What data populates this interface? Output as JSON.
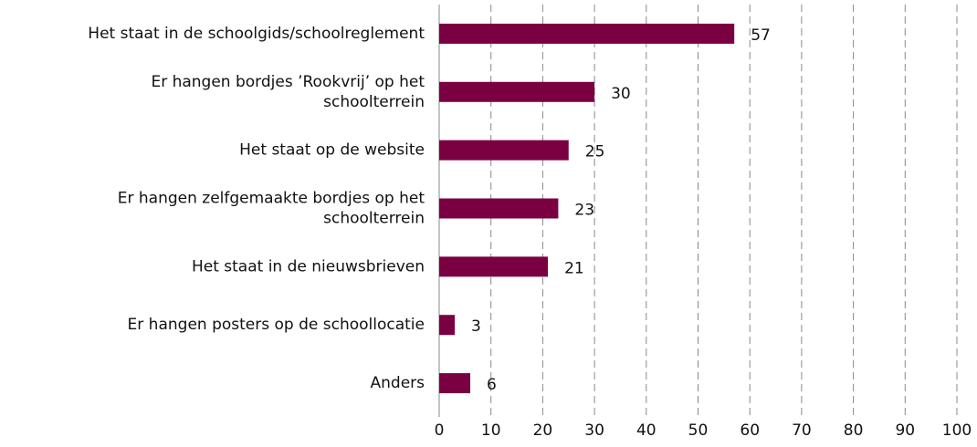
{
  "chart_data": {
    "type": "barh",
    "categories": [
      "Het staat in de schoolgids/schoolreglement",
      "Er hangen bordjes ’Rookvrij’ op het\nschoolterrein",
      "Het staat op de website",
      "Er hangen zelfgemaakte bordjes op het\nschoolterrein",
      "Het staat in de nieuwsbrieven",
      "Er hangen posters op de schoollocatie",
      "Anders"
    ],
    "values": [
      57,
      30,
      25,
      23,
      21,
      3,
      6
    ],
    "color": "#7b0041",
    "xlim": [
      0,
      100
    ],
    "xticks": [
      0,
      10,
      20,
      30,
      40,
      50,
      60,
      70,
      80,
      90,
      100
    ],
    "grid": true
  }
}
